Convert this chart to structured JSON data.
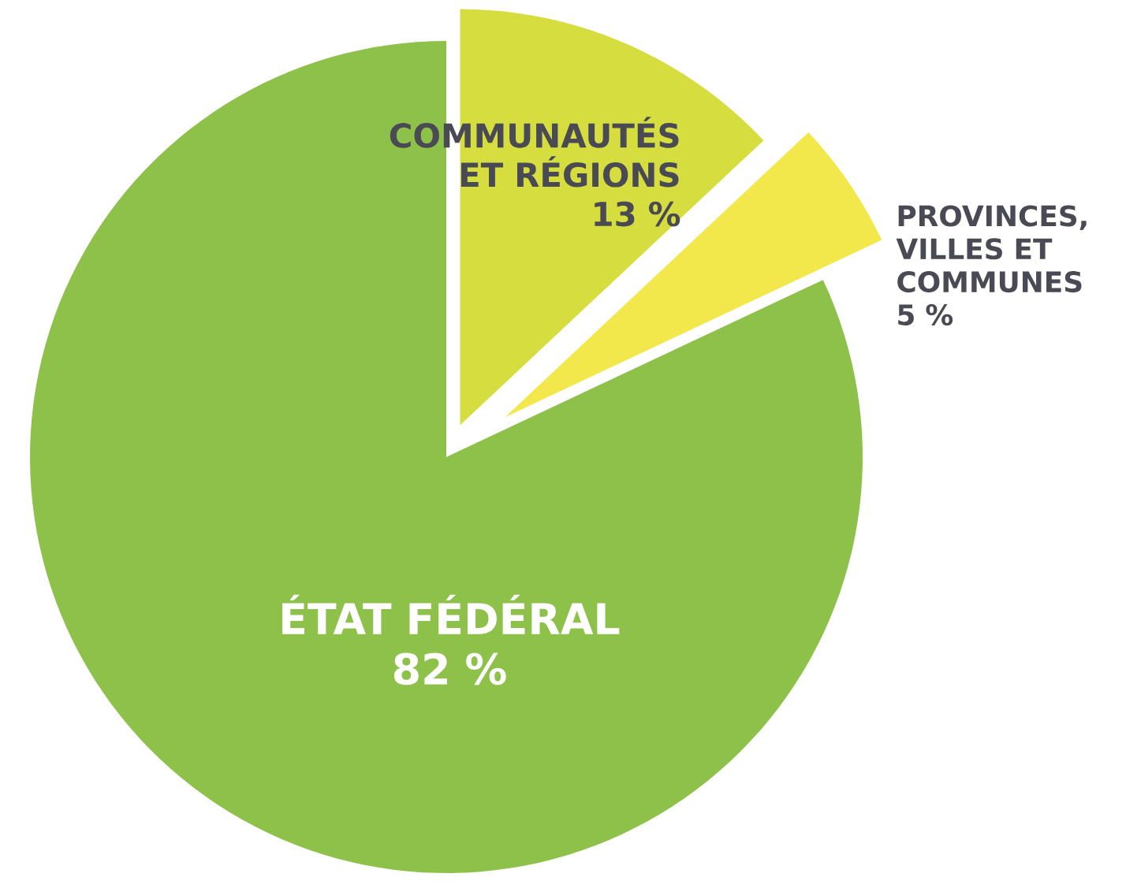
{
  "chart_data": {
    "type": "pie",
    "categories": [
      "COMMUNAUTÉS ET RÉGIONS",
      "PROVINCES, VILLES ET COMMUNES",
      "ÉTAT FÉDÉRAL"
    ],
    "values": [
      13,
      5,
      82
    ],
    "value_labels": [
      "13 %",
      "5 %",
      "82 %"
    ],
    "colors": [
      "#d5de3e",
      "#f2e84b",
      "#8dc14a"
    ]
  }
}
